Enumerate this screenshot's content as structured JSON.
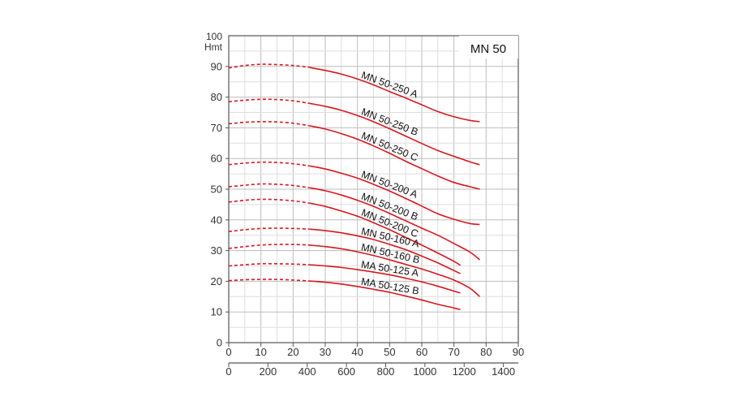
{
  "chart_data": {
    "type": "line",
    "title": "MN 50",
    "ylabel_top": "100",
    "ylabel_unit": "Hmt",
    "xlim": [
      0,
      90
    ],
    "ylim": [
      0,
      100
    ],
    "x_ticks": [
      0,
      10,
      20,
      30,
      40,
      50,
      60,
      70,
      80,
      90
    ],
    "x2_ticks": [
      0,
      200,
      400,
      600,
      800,
      1000,
      1200,
      1400
    ],
    "x2_per_x": 16.4,
    "y_ticks": [
      0,
      10,
      20,
      30,
      40,
      50,
      60,
      70,
      80,
      90
    ],
    "grid": true,
    "line_color": "#d9161f",
    "series": [
      {
        "name": "MN 50-250 A",
        "x": [
          0,
          5,
          10,
          15,
          20,
          25,
          30,
          35,
          40,
          45,
          50,
          55,
          60,
          65,
          70,
          75,
          78
        ],
        "y": [
          89.5,
          90.3,
          90.7,
          90.6,
          90.3,
          89.7,
          88.7,
          87.5,
          85.9,
          84,
          81.8,
          79.7,
          77.5,
          75.3,
          73.6,
          72.4,
          72
        ]
      },
      {
        "name": "MN 50-250 B",
        "x": [
          0,
          5,
          10,
          15,
          20,
          25,
          30,
          35,
          40,
          45,
          50,
          55,
          60,
          65,
          70,
          75,
          78
        ],
        "y": [
          78.5,
          79,
          79.3,
          79.2,
          78.8,
          78,
          77,
          75.7,
          74,
          72,
          69.7,
          67.3,
          64.9,
          62.6,
          60.7,
          58.9,
          58
        ]
      },
      {
        "name": "MN 50-250 C",
        "x": [
          0,
          5,
          10,
          15,
          20,
          25,
          30,
          35,
          40,
          45,
          50,
          55,
          60,
          65,
          70,
          75,
          78
        ],
        "y": [
          71.3,
          71.8,
          72,
          71.9,
          71.5,
          70.7,
          69.6,
          68.1,
          66.3,
          64.1,
          61.7,
          59.1,
          56.7,
          54.3,
          52.2,
          50.8,
          50
        ]
      },
      {
        "name": "MN 50-200 A",
        "x": [
          0,
          5,
          10,
          15,
          20,
          25,
          30,
          35,
          40,
          45,
          50,
          55,
          60,
          65,
          70,
          75,
          78
        ],
        "y": [
          58,
          58.5,
          58.8,
          58.7,
          58.3,
          57.6,
          56.6,
          55.2,
          53.6,
          51.6,
          49.4,
          47,
          44.5,
          42,
          40.2,
          38.8,
          38.5
        ]
      },
      {
        "name": "MN 50-200 B",
        "x": [
          0,
          5,
          10,
          15,
          20,
          25,
          30,
          35,
          40,
          45,
          50,
          55,
          60,
          65,
          70,
          75,
          78
        ],
        "y": [
          50.8,
          51.3,
          51.7,
          51.6,
          51.2,
          50.5,
          49.5,
          48.1,
          46.4,
          44.4,
          42.1,
          39.7,
          37.3,
          35,
          32.3,
          29.5,
          27
        ]
      },
      {
        "name": "MN 50-200 C",
        "x": [
          0,
          5,
          10,
          15,
          20,
          25,
          30,
          35,
          40,
          45,
          50,
          55,
          60,
          65,
          70,
          72
        ],
        "y": [
          45.8,
          46.4,
          46.7,
          46.6,
          46.2,
          45.5,
          44.4,
          42.9,
          41.2,
          39.1,
          36.8,
          34.3,
          31.8,
          29.2,
          26.5,
          25.2
        ]
      },
      {
        "name": "MN 50-160 A",
        "x": [
          0,
          5,
          10,
          15,
          20,
          25,
          30,
          35,
          40,
          45,
          50,
          55,
          60,
          65,
          70,
          72
        ],
        "y": [
          36.2,
          36.8,
          37.2,
          37.3,
          37.2,
          37,
          36.5,
          35.8,
          34.8,
          33.6,
          32,
          30.3,
          28.2,
          26,
          23.5,
          22.5
        ]
      },
      {
        "name": "MN 50-160 B",
        "x": [
          0,
          5,
          10,
          15,
          20,
          25,
          30,
          35,
          40,
          45,
          50,
          55,
          60,
          65,
          70,
          75,
          78
        ],
        "y": [
          30.7,
          31.3,
          31.8,
          32,
          32,
          31.8,
          31.3,
          30.6,
          29.6,
          28.4,
          27,
          25.5,
          24,
          22.3,
          20.4,
          17.7,
          15
        ]
      },
      {
        "name": "MA 50-125 A",
        "x": [
          0,
          5,
          10,
          15,
          20,
          25,
          30,
          35,
          40,
          45,
          50,
          55,
          60,
          65,
          70,
          72
        ],
        "y": [
          25,
          25.4,
          25.7,
          25.7,
          25.6,
          25.4,
          25,
          24.5,
          23.8,
          23,
          22.1,
          21,
          19.8,
          18.4,
          16.8,
          16.2
        ]
      },
      {
        "name": "MA 50-125 B",
        "x": [
          0,
          5,
          10,
          15,
          20,
          25,
          30,
          35,
          40,
          45,
          50,
          55,
          60,
          65,
          70,
          72
        ],
        "y": [
          20.2,
          20.5,
          20.6,
          20.6,
          20.4,
          20.1,
          19.7,
          19.1,
          18.3,
          17.4,
          16.4,
          15.2,
          13.9,
          12.5,
          11.3,
          10.8
        ]
      }
    ],
    "dashed_until_x": 25
  }
}
